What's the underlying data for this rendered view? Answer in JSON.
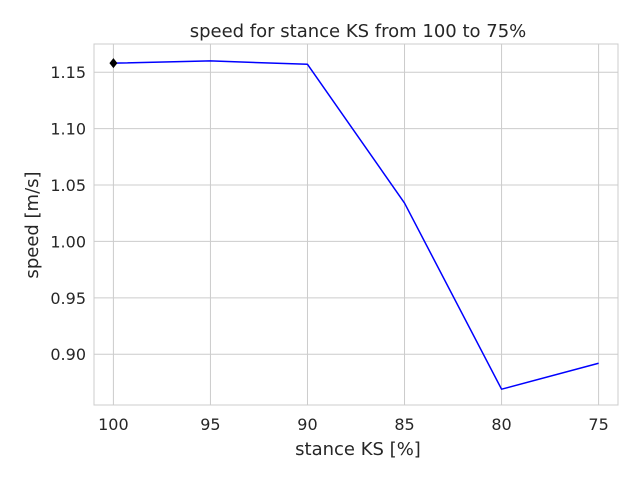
{
  "chart_data": {
    "type": "line",
    "title": "speed for stance KS from 100 to 75%",
    "xlabel": "stance KS [%]",
    "ylabel": "speed [m/s]",
    "x": [
      100,
      95,
      90,
      85,
      80,
      75
    ],
    "x_tick_labels": [
      "100",
      "95",
      "90",
      "85",
      "80",
      "75"
    ],
    "x_reversed": true,
    "xlim": [
      101,
      74
    ],
    "ylim": [
      0.855,
      1.175
    ],
    "y_ticks": [
      0.9,
      0.95,
      1.0,
      1.05,
      1.1,
      1.15
    ],
    "y_tick_labels": [
      "0.90",
      "0.95",
      "1.00",
      "1.05",
      "1.10",
      "1.15"
    ],
    "grid": true,
    "series": [
      {
        "values": [
          1.158,
          1.16,
          1.157,
          1.034,
          0.869,
          0.892
        ],
        "color": "#0000ff"
      }
    ],
    "markers": [
      {
        "x": 100,
        "y": 1.158,
        "shape": "diamond",
        "color": "#000000"
      }
    ]
  }
}
